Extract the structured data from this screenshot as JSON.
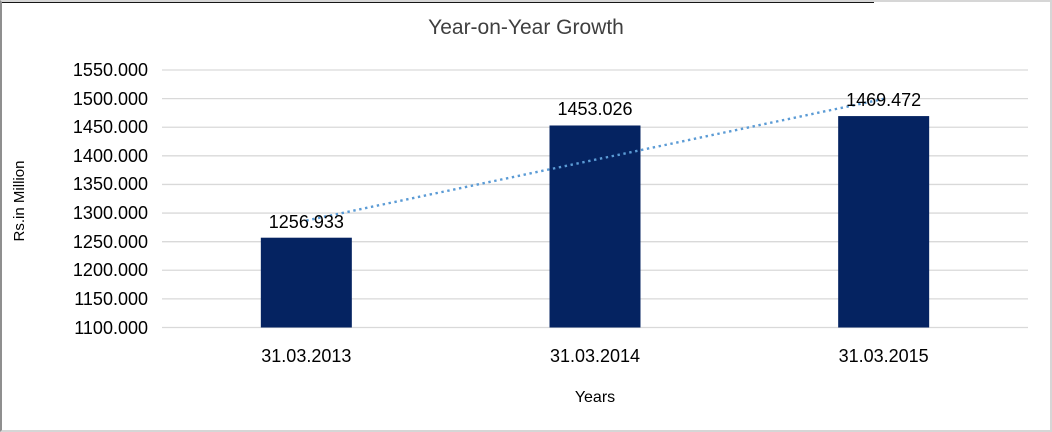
{
  "window": {
    "background": "#ffffff",
    "border_light": "#d6d6d6",
    "border_dark": "#161616"
  },
  "chart_data": {
    "type": "bar",
    "title": "Year-on-Year Growth",
    "categories": [
      "31.03.2013",
      "31.03.2014",
      "31.03.2015"
    ],
    "values": [
      1256.933,
      1453.026,
      1469.472
    ],
    "data_labels": [
      "1256.933",
      "1453.026",
      "1469.472"
    ],
    "xlabel": "Years",
    "ylabel": "Rs.in Million",
    "ylim": [
      1100,
      1550
    ],
    "ytick_step": 50,
    "ytick_labels": [
      "1550.000",
      "1500.000",
      "1450.000",
      "1400.000",
      "1350.000",
      "1300.000",
      "1250.000",
      "1200.000",
      "1150.000",
      "1100.000"
    ],
    "grid": "horizontal",
    "legend": "none",
    "series_name": "",
    "trendline": {
      "type": "linear",
      "style": "dotted"
    },
    "colors": {
      "bar": "#052361",
      "trendline": "#5b9bd5",
      "gridline": "#d9d9d9",
      "title_text": "#3f3f3f",
      "axis_text": "#000000"
    }
  }
}
